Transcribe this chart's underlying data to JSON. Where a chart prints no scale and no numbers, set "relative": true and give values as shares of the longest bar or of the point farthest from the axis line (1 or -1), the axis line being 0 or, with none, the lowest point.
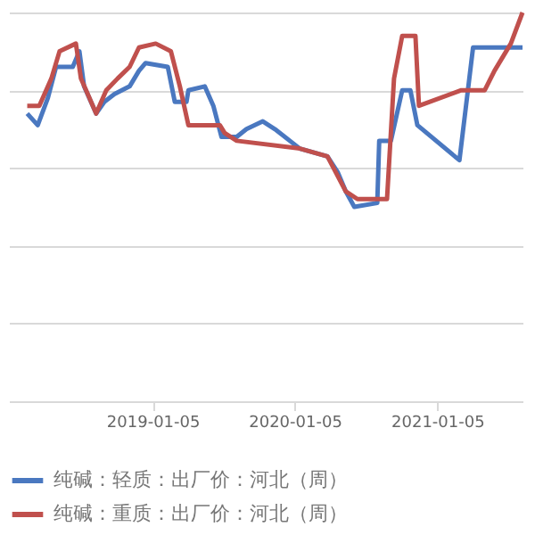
{
  "chart_data": {
    "type": "line",
    "relative": true,
    "grid": "y",
    "legend": "bottom",
    "line_style": "solid",
    "marker": "none",
    "xlim": [
      "2018-01-01",
      "2021-08-12"
    ],
    "xticks": [
      {
        "value": "2019-01-05",
        "label": "2019-01-05"
      },
      {
        "value": "2020-01-05",
        "label": "2020-01-05"
      },
      {
        "value": "2021-01-05",
        "label": "2021-01-05"
      }
    ],
    "series": [
      {
        "name": "纯碱：轻质：出厂价：河北（周）",
        "color": "#4a78c0",
        "x": [
          "2018-02-17",
          "2018-03-16",
          "2018-04-11",
          "2018-05-02",
          "2018-06-14",
          "2018-07-01",
          "2018-07-13",
          "2018-08-13",
          "2018-09-03",
          "2018-09-29",
          "2018-11-07",
          "2018-12-01",
          "2018-12-18",
          "2019-02-13",
          "2019-03-03",
          "2019-04-02",
          "2019-04-07",
          "2019-05-19",
          "2019-06-10",
          "2019-07-01",
          "2019-08-09",
          "2019-09-03",
          "2019-10-15",
          "2019-11-15",
          "2020-01-18",
          "2020-03-29",
          "2020-04-24",
          "2020-05-15",
          "2020-06-06",
          "2020-08-04",
          "2020-08-09",
          "2020-09-08",
          "2020-10-07",
          "2020-10-28",
          "2020-11-15",
          "2021-03-03",
          "2021-04-07",
          "2021-08-12"
        ],
        "values": [
          0.74,
          0.71,
          0.78,
          0.86,
          0.86,
          0.9,
          0.81,
          0.74,
          0.77,
          0.79,
          0.81,
          0.85,
          0.87,
          0.86,
          0.77,
          0.77,
          0.8,
          0.81,
          0.76,
          0.68,
          0.68,
          0.7,
          0.72,
          0.7,
          0.65,
          0.63,
          0.59,
          0.54,
          0.5,
          0.51,
          0.67,
          0.67,
          0.8,
          0.8,
          0.71,
          0.62,
          0.91,
          0.91
        ]
      },
      {
        "name": "纯碱：重质：出厂价：河北（周）",
        "color": "#c0504d",
        "x": [
          "2018-02-17",
          "2018-03-20",
          "2018-04-20",
          "2018-05-11",
          "2018-06-22",
          "2018-07-05",
          "2018-08-13",
          "2018-09-08",
          "2018-10-07",
          "2018-11-07",
          "2018-12-01",
          "2019-01-13",
          "2019-02-21",
          "2019-03-16",
          "2019-04-07",
          "2019-06-27",
          "2019-07-09",
          "2019-08-09",
          "2020-01-18",
          "2020-03-29",
          "2020-05-15",
          "2020-06-14",
          "2020-08-29",
          "2020-09-16",
          "2020-10-07",
          "2020-11-10",
          "2020-11-19",
          "2021-03-08",
          "2021-05-07",
          "2021-06-01",
          "2021-07-13",
          "2021-08-12"
        ],
        "values": [
          0.76,
          0.76,
          0.83,
          0.9,
          0.92,
          0.83,
          0.74,
          0.8,
          0.83,
          0.86,
          0.91,
          0.92,
          0.9,
          0.81,
          0.71,
          0.71,
          0.69,
          0.67,
          0.65,
          0.63,
          0.54,
          0.52,
          0.52,
          0.83,
          0.94,
          0.94,
          0.76,
          0.8,
          0.8,
          0.85,
          0.92,
          1.0
        ]
      }
    ]
  }
}
